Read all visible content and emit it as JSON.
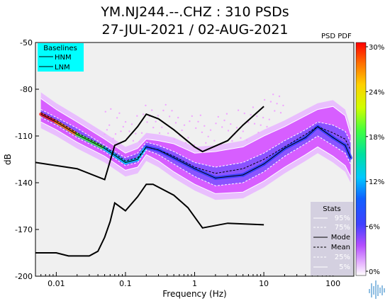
{
  "title_line_1": "YM.NJ244.--.CHZ : 310 PSDs",
  "title_line_2": "27-JUL-2021 / 02-AUG-2021",
  "colorbar_label": "PSD PDF",
  "colors": {
    "plot_background": "#f0f0f0",
    "baselines_box": "#00ffff",
    "stats_box": "#d4d0e0",
    "psd_cloud": "#d44dff"
  },
  "chart_data": {
    "type": "heatmap",
    "xlabel": "Frequency (Hz)",
    "ylabel": "dB",
    "x_scale": "log",
    "xlim": [
      0.005,
      200
    ],
    "ylim": [
      -200,
      -50
    ],
    "x_ticks": [
      0.01,
      0.1,
      1,
      10,
      100
    ],
    "x_tick_labels": [
      "0.01",
      "0.1",
      "1",
      "10",
      "100"
    ],
    "y_ticks": [
      -50,
      -80,
      -110,
      -140,
      -170,
      -200
    ],
    "y_tick_labels": [
      "-50",
      "-80",
      "-110",
      "-140",
      "-170",
      "-200"
    ],
    "grid": false,
    "colorbar": {
      "ticks": [
        "30%",
        "24%",
        "18%",
        "12%",
        "6%",
        "0%"
      ],
      "range": [
        0,
        30
      ]
    },
    "baselines": {
      "title": "Baselines",
      "placement": "top-left",
      "entries": [
        "HNM",
        "LNM"
      ],
      "series": [
        {
          "name": "HNM",
          "x": [
            0.005,
            0.02,
            0.05,
            0.07,
            0.1,
            0.15,
            0.2,
            0.3,
            0.5,
            1,
            1.3,
            3,
            5,
            10
          ],
          "y": [
            -127,
            -131,
            -138,
            -116,
            -113,
            -104,
            -96,
            -99,
            -106,
            -117,
            -120,
            -113,
            -103,
            -91
          ]
        },
        {
          "name": "LNM",
          "x": [
            0.005,
            0.01,
            0.015,
            0.03,
            0.04,
            0.05,
            0.06,
            0.07,
            0.1,
            0.15,
            0.2,
            0.25,
            0.5,
            0.8,
            1.3,
            3,
            10
          ],
          "y": [
            -185,
            -185,
            -187,
            -187,
            -184,
            -175,
            -165,
            -153,
            -158,
            -149,
            -141,
            -141,
            -148,
            -156,
            -169,
            -166,
            -167
          ]
        }
      ]
    },
    "stats": {
      "title": "Stats",
      "placement": "bottom-right",
      "entries": [
        "95%",
        "75%",
        "Mode",
        "Mean",
        "25%",
        "5%"
      ],
      "series": [
        {
          "name": "95%",
          "x": [
            0.006,
            0.01,
            0.02,
            0.05,
            0.1,
            0.15,
            0.2,
            0.3,
            0.5,
            1,
            2,
            5,
            10,
            20,
            40,
            60,
            100,
            150,
            180
          ],
          "y": [
            -86,
            -93,
            -101,
            -112,
            -121,
            -118,
            -112,
            -113,
            -115,
            -121,
            -120,
            -117,
            -110,
            -104,
            -97,
            -93,
            -91,
            -97,
            -109
          ]
        },
        {
          "name": "75%",
          "x": [
            0.006,
            0.01,
            0.02,
            0.05,
            0.1,
            0.15,
            0.2,
            0.3,
            0.5,
            1,
            2,
            5,
            10,
            20,
            40,
            60,
            100,
            150,
            180
          ],
          "y": [
            -93,
            -98,
            -105,
            -116,
            -124,
            -121,
            -114,
            -116,
            -120,
            -127,
            -130,
            -127,
            -121,
            -113,
            -106,
            -101,
            -103,
            -107,
            -114
          ]
        },
        {
          "name": "Mode",
          "x": [
            0.006,
            0.01,
            0.02,
            0.05,
            0.1,
            0.15,
            0.2,
            0.3,
            0.5,
            1,
            2,
            5,
            10,
            20,
            40,
            60,
            100,
            150,
            180
          ],
          "y": [
            -96,
            -101,
            -109,
            -118,
            -127,
            -125,
            -117,
            -119,
            -124,
            -131,
            -137,
            -135,
            -128,
            -118,
            -111,
            -104,
            -111,
            -116,
            -124
          ]
        },
        {
          "name": "Mean",
          "x": [
            0.006,
            0.01,
            0.02,
            0.05,
            0.1,
            0.15,
            0.2,
            0.3,
            0.5,
            1,
            2,
            5,
            10,
            20,
            40,
            60,
            100,
            150,
            180
          ],
          "y": [
            -95,
            -100,
            -108,
            -117,
            -126,
            -124,
            -117,
            -119,
            -123,
            -130,
            -134,
            -131,
            -125,
            -117,
            -109,
            -104,
            -108,
            -112,
            -119
          ]
        },
        {
          "name": "25%",
          "x": [
            0.006,
            0.01,
            0.02,
            0.05,
            0.1,
            0.15,
            0.2,
            0.3,
            0.5,
            1,
            2,
            5,
            10,
            20,
            40,
            60,
            100,
            150,
            180
          ],
          "y": [
            -98,
            -103,
            -111,
            -120,
            -129,
            -127,
            -119,
            -122,
            -128,
            -136,
            -142,
            -140,
            -133,
            -123,
            -115,
            -110,
            -116,
            -121,
            -128
          ]
        },
        {
          "name": "5%",
          "x": [
            0.006,
            0.01,
            0.02,
            0.05,
            0.1,
            0.15,
            0.2,
            0.3,
            0.5,
            1,
            2,
            5,
            10,
            20,
            40,
            60,
            100,
            150,
            180
          ],
          "y": [
            -101,
            -106,
            -114,
            -123,
            -132,
            -130,
            -122,
            -126,
            -133,
            -141,
            -147,
            -146,
            -139,
            -130,
            -122,
            -117,
            -123,
            -129,
            -136
          ]
        }
      ]
    }
  }
}
